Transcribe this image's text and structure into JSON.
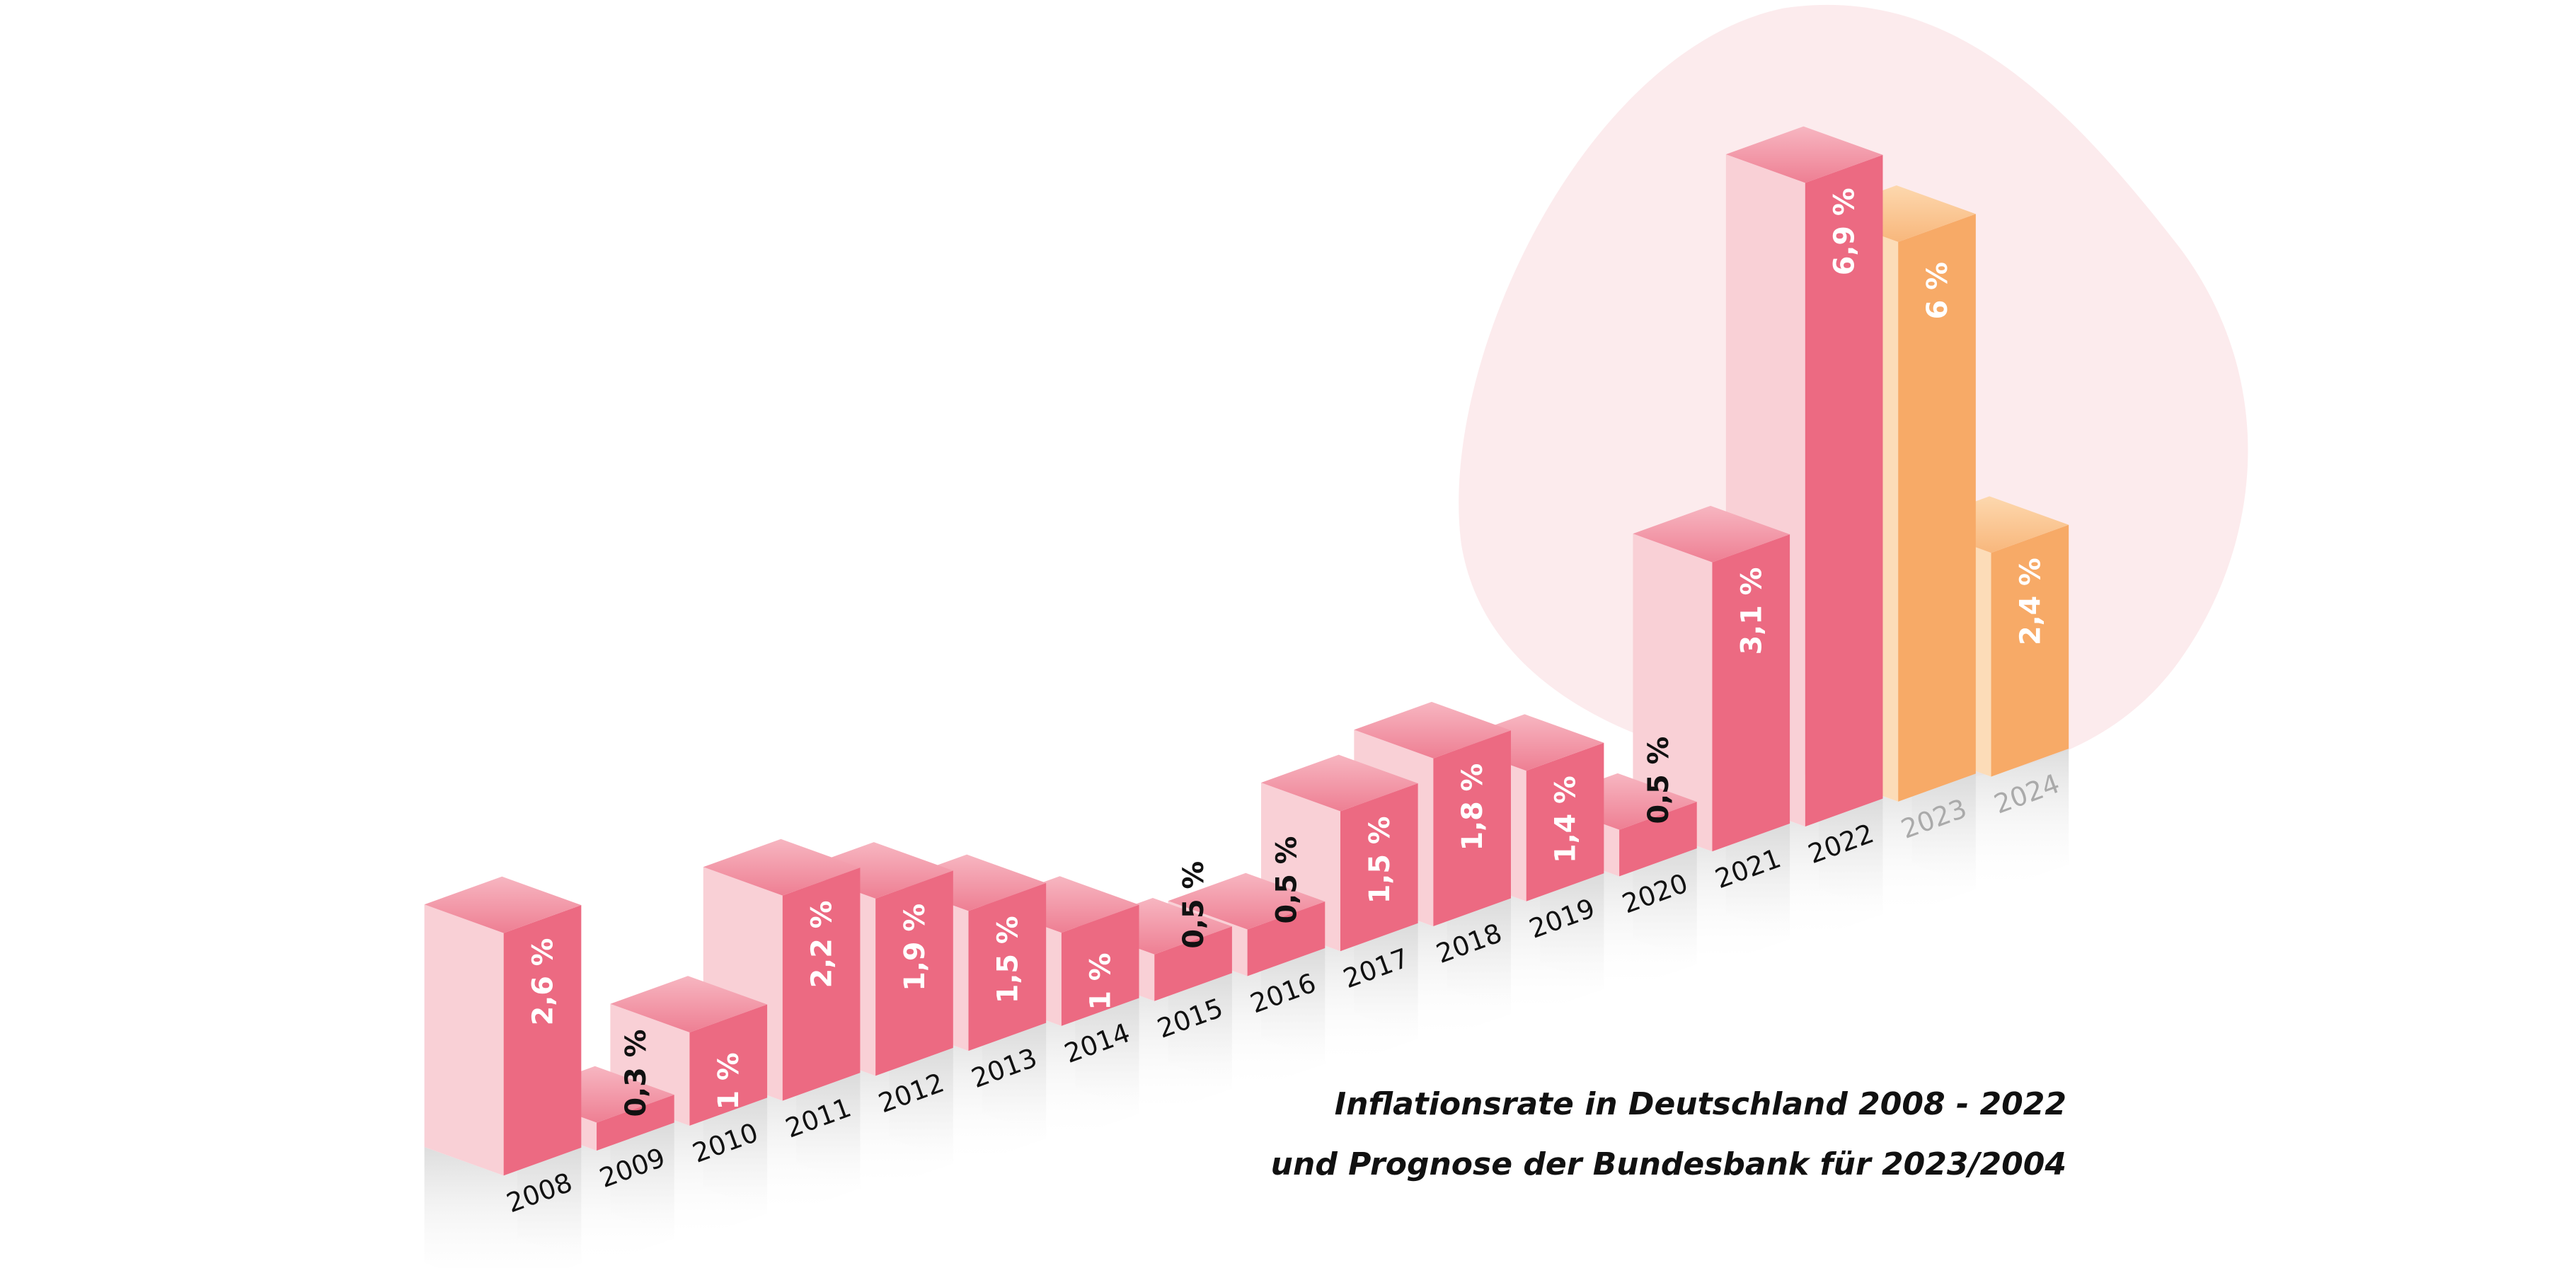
{
  "chart_data": {
    "type": "bar",
    "style": "3d-isometric",
    "title": "Inflationsrate in Deutschland 2008 - 2022",
    "subtitle": "und Prognose der Bundesbank für 2023/2004",
    "categories": [
      "2008",
      "2009",
      "2010",
      "2011",
      "2012",
      "2013",
      "2014",
      "2015",
      "2016",
      "2017",
      "2018",
      "2019",
      "2020",
      "2021",
      "2022",
      "2023",
      "2024"
    ],
    "values": [
      2.6,
      0.3,
      1,
      2.2,
      1.9,
      1.5,
      1,
      0.5,
      0.5,
      1.5,
      1.8,
      1.4,
      0.5,
      3.1,
      6.9,
      6,
      2.4
    ],
    "labels": [
      "2,6 %",
      "0,3 %",
      "1 %",
      "2,2 %",
      "1,9 %",
      "1,5 %",
      "1 %",
      "0,5 %",
      "0,5 %",
      "1,5 %",
      "1,8 %",
      "1,4 %",
      "0,5 %",
      "3,1 %",
      "6,9 %",
      "6 %",
      "2,4 %"
    ],
    "forecast": [
      false,
      false,
      false,
      false,
      false,
      false,
      false,
      false,
      false,
      false,
      false,
      false,
      false,
      false,
      false,
      true,
      true
    ],
    "unit": "%",
    "grid": false,
    "colors": {
      "actual_front": "#ec6a82",
      "actual_side": "#f9d0d6",
      "actual_top_light": "#f7b6c1",
      "actual_top_dark": "#ee7f93",
      "forecast_front": "#f7aa67",
      "forecast_side": "#fcdcb8",
      "forecast_top_light": "#fdd8ae",
      "forecast_top_dark": "#f8b77c",
      "blob": "#fcebed",
      "year_label": "#111111",
      "forecast_year_label": "#aaaaaa"
    }
  }
}
